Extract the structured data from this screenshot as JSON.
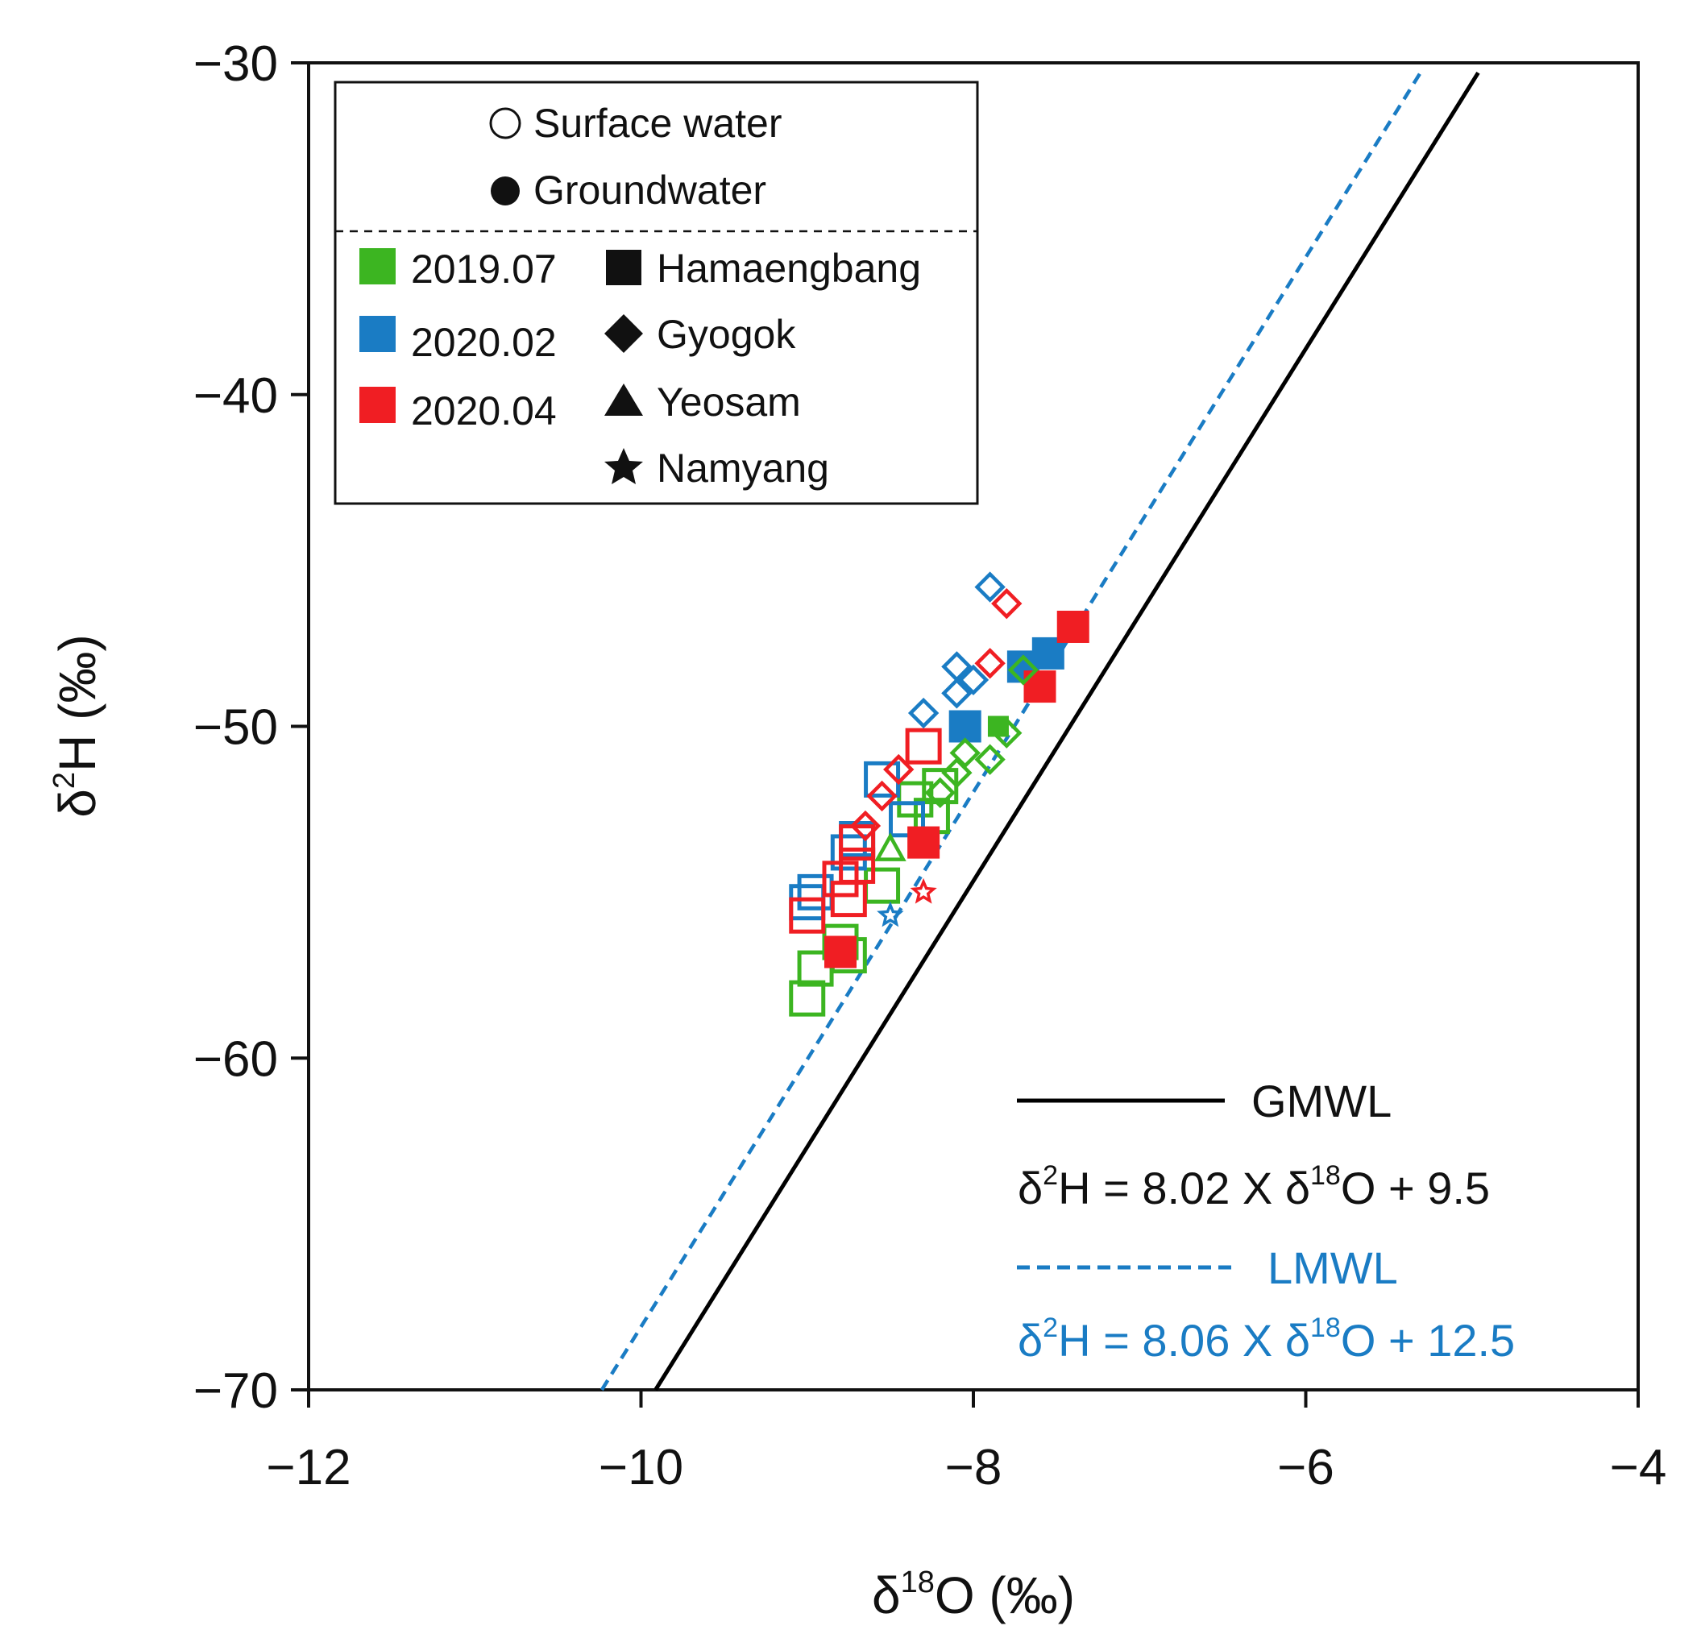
{
  "chart_data": {
    "type": "scatter",
    "title": "",
    "xlabel": {
      "delta": "δ",
      "sup": "18",
      "rest": "O (‰)"
    },
    "ylabel": {
      "delta": "δ",
      "sup": "2",
      "rest": "H (‰)"
    },
    "xlim": [
      -12,
      -4
    ],
    "ylim": [
      -70,
      -30
    ],
    "xticks": [
      -12,
      -10,
      -8,
      -6,
      -4
    ],
    "yticks": [
      -30,
      -40,
      -50,
      -60,
      -70
    ],
    "grid": false,
    "legend": {
      "placement": "top-left",
      "types": [
        {
          "label": "Surface water",
          "marker": "open-circle"
        },
        {
          "label": "Groundwater",
          "marker": "filled-circle"
        }
      ],
      "periods": [
        {
          "label": "2019.07",
          "color": "#3cb521"
        },
        {
          "label": "2020.02",
          "color": "#1a7cc4"
        },
        {
          "label": "2020.04",
          "color": "#f01e23"
        }
      ],
      "sites": [
        {
          "label": "Hamaengbang",
          "marker": "square"
        },
        {
          "label": "Gyogok",
          "marker": "diamond"
        },
        {
          "label": "Yeosam",
          "marker": "triangle"
        },
        {
          "label": "Namyang",
          "marker": "star"
        }
      ]
    },
    "lines": [
      {
        "name": "GMWL",
        "slope": 8.02,
        "intercept": 9.5,
        "color": "#000000",
        "dash": false,
        "equation": {
          "a": "δ",
          "b": "2",
          "c": "H = 8.02 X δ",
          "d": "18",
          "e": "O + 9.5"
        }
      },
      {
        "name": "LMWL",
        "slope": 8.06,
        "intercept": 12.5,
        "color": "#1a7cc4",
        "dash": true,
        "equation": {
          "a": "δ",
          "b": "2",
          "c": "H = 8.06 X δ",
          "d": "18",
          "e": "O + 12.5"
        }
      }
    ],
    "series": [
      {
        "name": "2019.07 Hamaengbang surface",
        "color": "#3cb521",
        "marker": "square",
        "filled": false,
        "size": "large",
        "points": [
          [
            -9.0,
            -58.2
          ],
          [
            -8.95,
            -57.3
          ],
          [
            -8.8,
            -56.5
          ],
          [
            -8.75,
            -56.9
          ],
          [
            -8.55,
            -54.8
          ],
          [
            -8.35,
            -52.2
          ],
          [
            -8.25,
            -52.7
          ],
          [
            -8.2,
            -51.8
          ]
        ]
      },
      {
        "name": "2020.02 Hamaengbang surface",
        "color": "#1a7cc4",
        "marker": "square",
        "filled": false,
        "size": "large",
        "points": [
          [
            -9.0,
            -55.3
          ],
          [
            -8.95,
            -55.0
          ],
          [
            -8.75,
            -53.8
          ],
          [
            -8.7,
            -53.4
          ],
          [
            -8.55,
            -51.6
          ],
          [
            -8.4,
            -52.8
          ]
        ]
      },
      {
        "name": "2020.04 Hamaengbang surface",
        "color": "#f01e23",
        "marker": "square",
        "filled": false,
        "size": "large",
        "points": [
          [
            -9.0,
            -55.7
          ],
          [
            -8.8,
            -54.6
          ],
          [
            -8.75,
            -55.2
          ],
          [
            -8.7,
            -54.2
          ],
          [
            -8.7,
            -53.5
          ],
          [
            -8.3,
            -50.6
          ]
        ]
      },
      {
        "name": "2019.07 Hamaengbang groundwater",
        "color": "#3cb521",
        "marker": "square",
        "filled": true,
        "size": "small",
        "points": [
          [
            -7.85,
            -50.0
          ]
        ]
      },
      {
        "name": "2020.02 Hamaengbang groundwater",
        "color": "#1a7cc4",
        "marker": "square",
        "filled": true,
        "size": "large",
        "points": [
          [
            -7.55,
            -47.8
          ],
          [
            -7.7,
            -48.2
          ],
          [
            -8.05,
            -50.0
          ]
        ]
      },
      {
        "name": "2020.04 Hamaengbang groundwater",
        "color": "#f01e23",
        "marker": "square",
        "filled": true,
        "size": "large",
        "points": [
          [
            -7.4,
            -47.0
          ],
          [
            -7.6,
            -48.8
          ],
          [
            -8.8,
            -56.8
          ],
          [
            -8.3,
            -53.5
          ]
        ]
      },
      {
        "name": "2019.07 Gyogok",
        "color": "#3cb521",
        "marker": "diamond",
        "filled": false,
        "size": "medium",
        "points": [
          [
            -7.7,
            -48.3
          ],
          [
            -7.9,
            -51.0
          ],
          [
            -8.05,
            -50.8
          ],
          [
            -8.1,
            -51.4
          ],
          [
            -8.2,
            -52.0
          ],
          [
            -7.8,
            -50.2
          ]
        ]
      },
      {
        "name": "2020.02 Gyogok",
        "color": "#1a7cc4",
        "marker": "diamond",
        "filled": false,
        "size": "medium",
        "points": [
          [
            -7.9,
            -45.8
          ],
          [
            -8.1,
            -48.2
          ],
          [
            -8.1,
            -49.0
          ],
          [
            -8.3,
            -49.6
          ],
          [
            -8.0,
            -48.6
          ]
        ]
      },
      {
        "name": "2020.04 Gyogok",
        "color": "#f01e23",
        "marker": "diamond",
        "filled": false,
        "size": "medium",
        "points": [
          [
            -7.8,
            -46.3
          ],
          [
            -7.9,
            -48.1
          ],
          [
            -8.45,
            -51.3
          ],
          [
            -8.55,
            -52.1
          ],
          [
            -8.65,
            -53.0
          ]
        ]
      },
      {
        "name": "2019.07 Yeosam",
        "color": "#3cb521",
        "marker": "triangle",
        "filled": false,
        "size": "medium",
        "points": [
          [
            -8.5,
            -53.7
          ]
        ]
      },
      {
        "name": "2020.02 Namyang",
        "color": "#1a7cc4",
        "marker": "star",
        "filled": false,
        "size": "small",
        "points": [
          [
            -8.5,
            -55.7
          ]
        ]
      },
      {
        "name": "2020.04 Namyang",
        "color": "#f01e23",
        "marker": "star",
        "filled": false,
        "size": "small",
        "points": [
          [
            -8.3,
            -55.0
          ]
        ]
      }
    ]
  }
}
